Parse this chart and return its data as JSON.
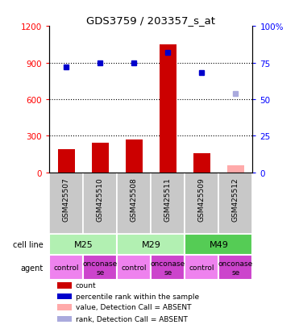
{
  "title": "GDS3759 / 203357_s_at",
  "samples": [
    "GSM425507",
    "GSM425510",
    "GSM425508",
    "GSM425511",
    "GSM425509",
    "GSM425512"
  ],
  "count_values": [
    190,
    240,
    270,
    1050,
    155,
    null
  ],
  "rank_values": [
    72,
    75,
    75,
    82,
    68,
    null
  ],
  "count_absent": [
    null,
    null,
    null,
    null,
    null,
    60
  ],
  "rank_absent": [
    null,
    null,
    null,
    null,
    null,
    54
  ],
  "agents": [
    "control",
    "onconase",
    "control",
    "onconase",
    "control",
    "onconase"
  ],
  "cell_line_items": [
    [
      "M25",
      0,
      2,
      "#b2f0b2"
    ],
    [
      "M29",
      2,
      4,
      "#b2f0b2"
    ],
    [
      "M49",
      4,
      6,
      "#55cc55"
    ]
  ],
  "agent_colors": {
    "control": "#ee82ee",
    "onconase": "#cc44cc"
  },
  "sample_bg": "#c8c8c8",
  "ylim_left": [
    0,
    1200
  ],
  "yticks_left": [
    0,
    300,
    600,
    900,
    1200
  ],
  "ytick_labels_left": [
    "0",
    "300",
    "600",
    "900",
    "1200"
  ],
  "ytick_labels_right": [
    "0",
    "25",
    "50",
    "75",
    "100%"
  ],
  "bar_color": "#cc0000",
  "dot_color": "#0000cc",
  "absent_bar_color": "#ffaaaa",
  "absent_dot_color": "#aaaadd",
  "bar_width": 0.5,
  "legend_items": [
    [
      "#cc0000",
      "count"
    ],
    [
      "#0000cc",
      "percentile rank within the sample"
    ],
    [
      "#ffaaaa",
      "value, Detection Call = ABSENT"
    ],
    [
      "#aaaadd",
      "rank, Detection Call = ABSENT"
    ]
  ]
}
